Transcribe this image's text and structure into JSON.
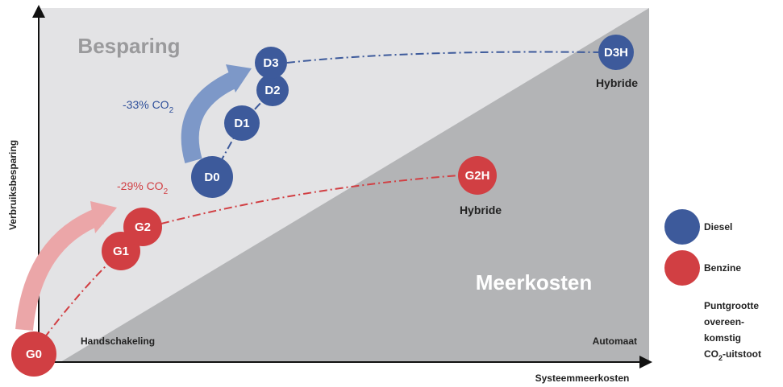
{
  "regions": {
    "top": "Besparing",
    "bottom": "Meerkosten"
  },
  "axes": {
    "y": "Verbruiksbesparing",
    "x": "Systeemmeerkosten",
    "x_start": "Handschakeling",
    "x_end": "Automaat"
  },
  "arrows": [
    {
      "text": "-33% CO",
      "sub": "2"
    },
    {
      "text": "-29% CO",
      "sub": "2"
    }
  ],
  "nodes": [
    "G0",
    "G1",
    "G2",
    "G2H",
    "D0",
    "D1",
    "D2",
    "D3",
    "D3H"
  ],
  "hybrid_labels": [
    "Hybride",
    "Hybride"
  ],
  "legend": [
    "Diesel",
    "Benzine"
  ],
  "note": {
    "lines": [
      "Puntgrootte",
      "overeen-",
      "komstig"
    ],
    "last": {
      "text": "CO",
      "sub": "2",
      "after": "-uitstoot"
    }
  }
}
